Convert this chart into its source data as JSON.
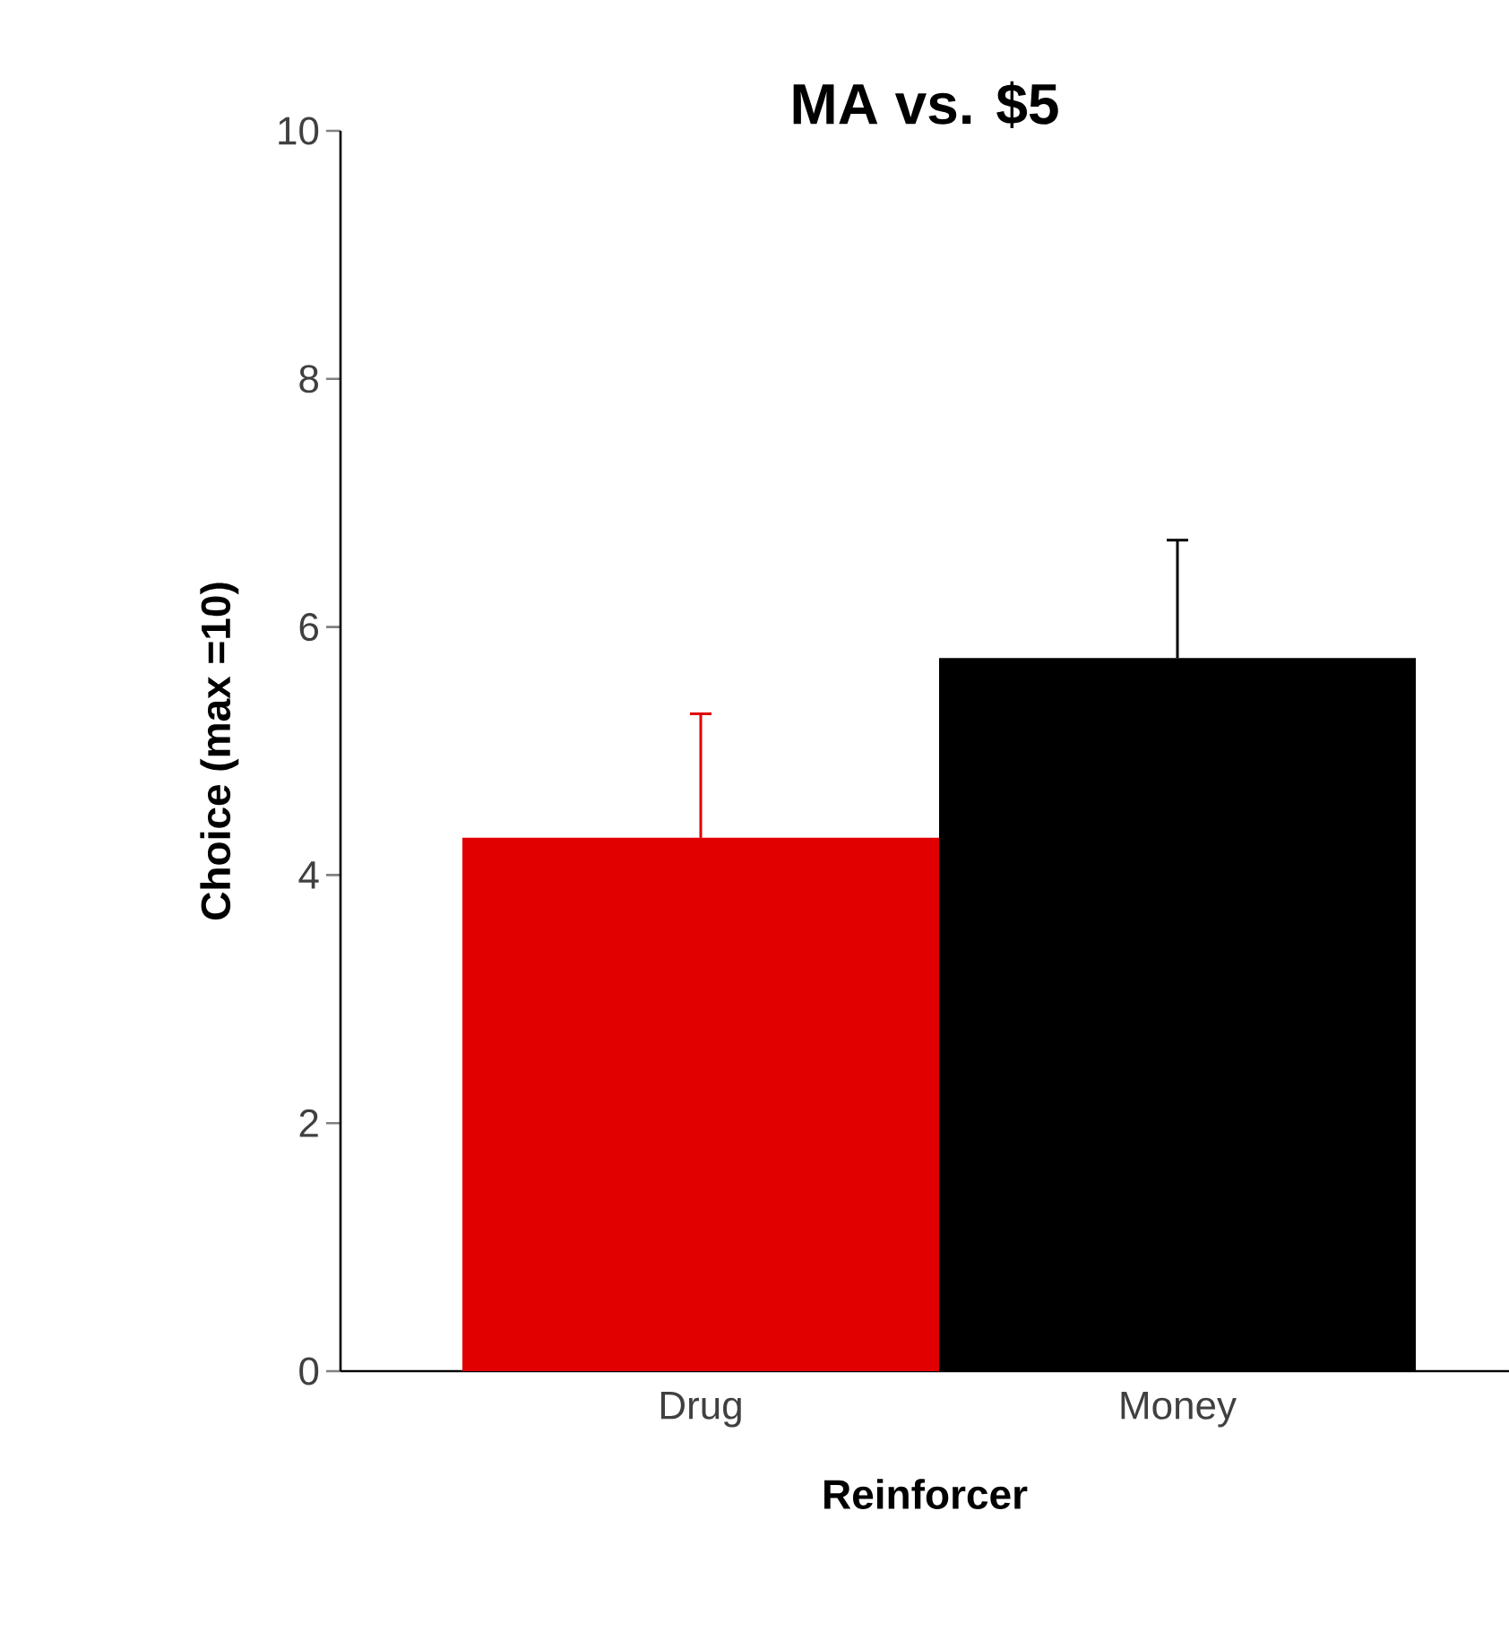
{
  "chart_data": {
    "type": "bar",
    "title": "MA  vs.  $5",
    "xlabel": "Reinforcer",
    "ylabel": "Choice  (max =10)",
    "categories": [
      "Drug",
      "Money"
    ],
    "values": [
      4.3,
      5.75
    ],
    "colors": [
      "#e00000",
      "#000000"
    ],
    "errors": [
      [
        4.3,
        5.3
      ],
      [
        5.75,
        6.7
      ]
    ],
    "ylim": [
      0,
      10
    ],
    "yticks": [
      0,
      2,
      4,
      6,
      8,
      10
    ],
    "grid": false
  }
}
